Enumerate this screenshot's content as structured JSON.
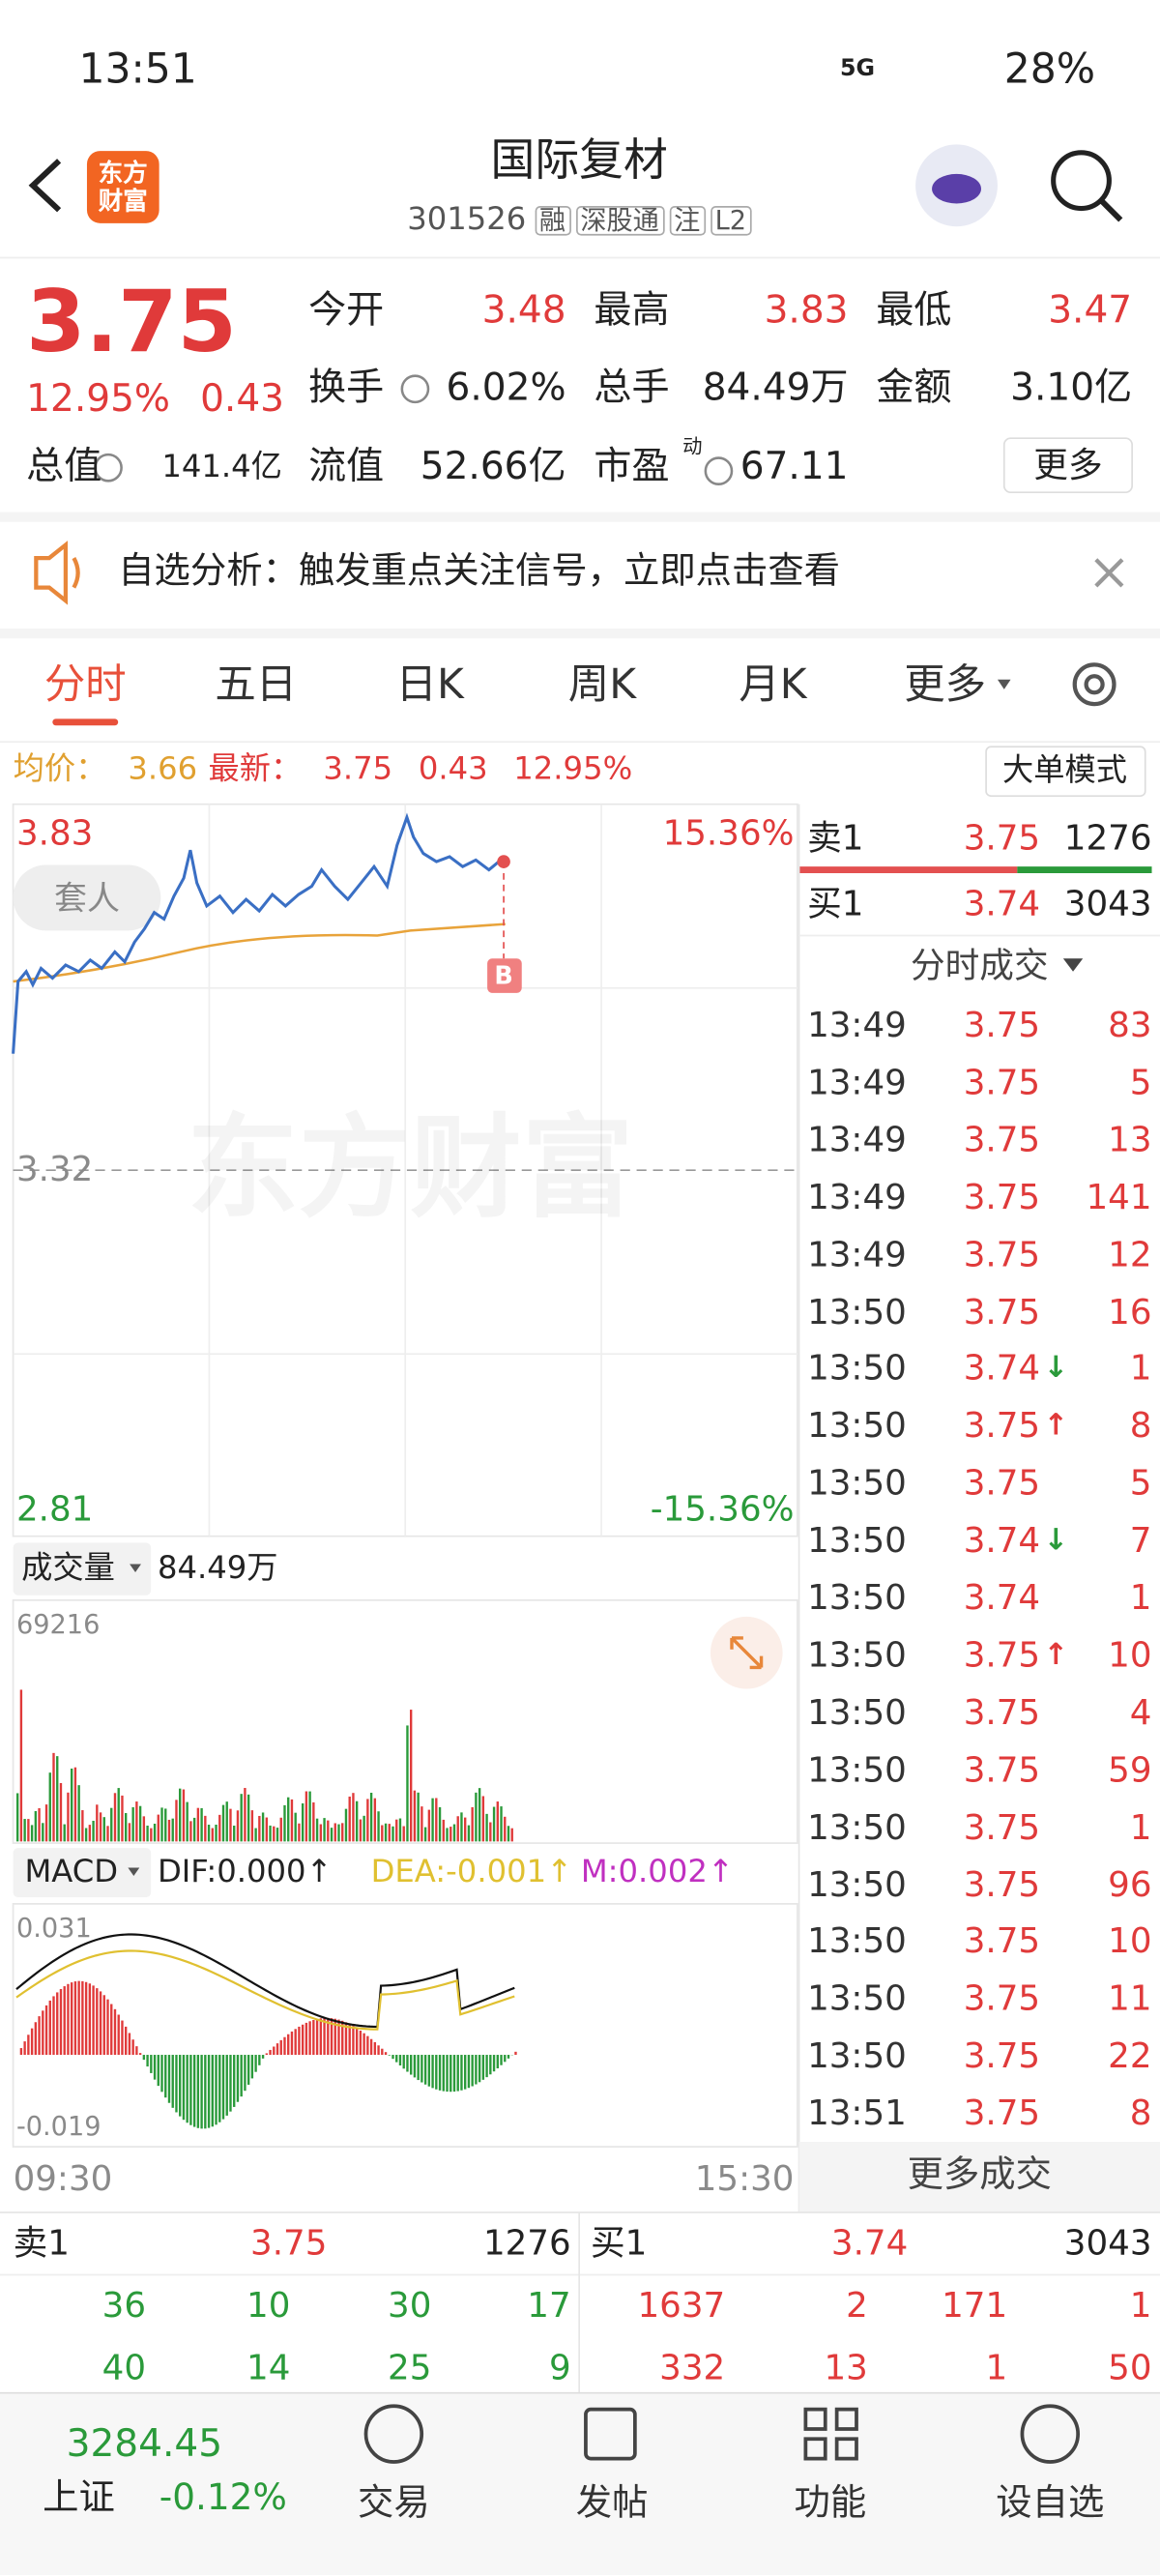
{
  "status_bar": {
    "time": "13:51",
    "network": "5G",
    "battery": "28%"
  },
  "header": {
    "logo": "东方财富",
    "title": "国际复材",
    "code": "301526",
    "tags": [
      "融",
      "深股通",
      "注",
      "L2"
    ]
  },
  "quote": {
    "price": "3.75",
    "change_pct": "12.95%",
    "change": "0.43",
    "fields": [
      {
        "label": "今开",
        "value": "3.48"
      },
      {
        "label": "最高",
        "value": "3.83"
      },
      {
        "label": "最低",
        "value": "3.47"
      },
      {
        "label": "换手",
        "value": "6.02%"
      },
      {
        "label": "总手",
        "value": "84.49万"
      },
      {
        "label": "金额",
        "value": "3.10亿"
      },
      {
        "label": "总值",
        "value": "141.4亿"
      },
      {
        "label": "流值",
        "value": "52.66亿"
      },
      {
        "label": "市盈",
        "value": "67.11"
      }
    ],
    "pe_superscript": "动",
    "more_button": "更多"
  },
  "banner": {
    "text": "自选分析：触发重点关注信号，立即点击查看"
  },
  "tabs": {
    "items": [
      "分时",
      "五日",
      "日K",
      "周K",
      "月K",
      "更多"
    ],
    "active": 0
  },
  "intraday": {
    "avg_label": "均价：",
    "avg": "3.66",
    "latest_label": "最新：",
    "latest": "3.75",
    "change": "0.43",
    "change_pct": "12.95%",
    "big_order_button": "大单模式",
    "high": "3.83",
    "high_pct": "15.36%",
    "base": "3.32",
    "low": "2.81",
    "low_pct": "-15.36%",
    "tag": "套人",
    "marker": "B",
    "watermark": "东方财富",
    "time_start": "09:30",
    "time_end": "15:30"
  },
  "volume": {
    "label": "成交量",
    "total": "84.49万",
    "max": "69216"
  },
  "macd": {
    "label": "MACD",
    "dif": "DIF:0.000↑",
    "dea": "DEA:-0.001↑",
    "m": "M:0.002↑",
    "max": "0.031",
    "min": "-0.019"
  },
  "order_book": {
    "ask": {
      "label": "卖1",
      "price": "3.75",
      "volume": "1276"
    },
    "bid": {
      "label": "买1",
      "price": "3.74",
      "volume": "3043"
    },
    "ask_depth": [
      [
        "36",
        "10",
        "30",
        "17"
      ],
      [
        "40",
        "14",
        "25",
        "9"
      ]
    ],
    "bid_depth": [
      [
        "1637",
        "2",
        "171",
        "1"
      ],
      [
        "332",
        "13",
        "1",
        "50"
      ]
    ]
  },
  "trades": {
    "title": "分时成交",
    "more": "更多成交",
    "rows": [
      {
        "time": "13:49",
        "price": "3.75",
        "volume": "83"
      },
      {
        "time": "13:49",
        "price": "3.75",
        "volume": "5"
      },
      {
        "time": "13:49",
        "price": "3.75",
        "volume": "13"
      },
      {
        "time": "13:49",
        "price": "3.75",
        "volume": "141"
      },
      {
        "time": "13:49",
        "price": "3.75",
        "volume": "12"
      },
      {
        "time": "13:50",
        "price": "3.75",
        "volume": "16"
      },
      {
        "time": "13:50",
        "price": "3.74",
        "arrow": "↓",
        "volume": "1"
      },
      {
        "time": "13:50",
        "price": "3.75",
        "arrow": "↑",
        "volume": "8"
      },
      {
        "time": "13:50",
        "price": "3.75",
        "volume": "5"
      },
      {
        "time": "13:50",
        "price": "3.74",
        "arrow": "↓",
        "volume": "7"
      },
      {
        "time": "13:50",
        "price": "3.74",
        "volume": "1"
      },
      {
        "time": "13:50",
        "price": "3.75",
        "arrow": "↑",
        "volume": "10"
      },
      {
        "time": "13:50",
        "price": "3.75",
        "volume": "4"
      },
      {
        "time": "13:50",
        "price": "3.75",
        "volume": "59"
      },
      {
        "time": "13:50",
        "price": "3.75",
        "volume": "1"
      },
      {
        "time": "13:50",
        "price": "3.75",
        "volume": "96"
      },
      {
        "time": "13:50",
        "price": "3.75",
        "volume": "10"
      },
      {
        "time": "13:50",
        "price": "3.75",
        "volume": "11"
      },
      {
        "time": "13:50",
        "price": "3.75",
        "volume": "22"
      },
      {
        "time": "13:51",
        "price": "3.75",
        "volume": "8"
      }
    ]
  },
  "footer": {
    "index_value": "3284.45",
    "index_name": "上证",
    "index_change": "-0.12%",
    "nav": [
      "交易",
      "发帖",
      "功能",
      "设自选"
    ]
  }
}
